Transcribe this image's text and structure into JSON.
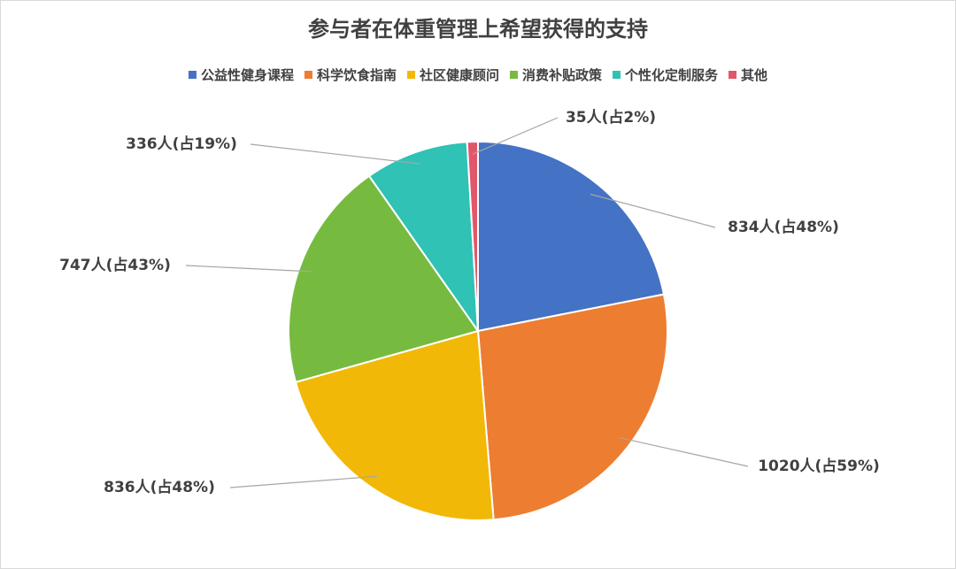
{
  "chart_data": {
    "type": "pie",
    "title": "参与者在体重管理上希望获得的支持",
    "categories": [
      "公益性健身课程",
      "科学饮食指南",
      "社区健康顾问",
      "消费补贴政策",
      "个性化定制服务",
      "其他"
    ],
    "values": [
      834,
      1020,
      836,
      747,
      336,
      35
    ],
    "value_labels": [
      "834人(占48%)",
      "1020人(占59%)",
      "836人(占48%)",
      "747人(占43%)",
      "336人(占19%)",
      "35人(占2%)"
    ],
    "colors": [
      "#4472c4",
      "#ed7d31",
      "#f2b807",
      "#76bb40",
      "#2fc2b5",
      "#e0576a"
    ],
    "legend": "top"
  }
}
